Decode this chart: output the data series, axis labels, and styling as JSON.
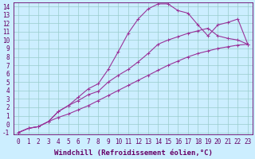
{
  "xlabel": "Windchill (Refroidissement éolien,°C)",
  "bg_color": "#cceeff",
  "line_color": "#993399",
  "xlim": [
    -0.5,
    23.5
  ],
  "ylim": [
    -1.2,
    14.5
  ],
  "xticks": [
    0,
    1,
    2,
    3,
    4,
    5,
    6,
    7,
    8,
    9,
    10,
    11,
    12,
    13,
    14,
    15,
    16,
    17,
    18,
    19,
    20,
    21,
    22,
    23
  ],
  "yticks": [
    -1,
    0,
    1,
    2,
    3,
    4,
    5,
    6,
    7,
    8,
    9,
    10,
    11,
    12,
    13,
    14
  ],
  "line1_x": [
    0,
    1,
    2,
    3,
    4,
    5,
    6,
    7,
    8,
    9,
    10,
    11,
    12,
    13,
    14,
    15,
    16,
    17,
    18,
    19,
    20,
    21,
    22,
    23
  ],
  "line1_y": [
    -1,
    -0.5,
    -0.3,
    0.3,
    0.8,
    1.2,
    1.7,
    2.2,
    2.8,
    3.4,
    4.0,
    4.6,
    5.2,
    5.8,
    6.4,
    7.0,
    7.5,
    8.0,
    8.4,
    8.7,
    9.0,
    9.2,
    9.4,
    9.5
  ],
  "line2_x": [
    0,
    1,
    2,
    3,
    4,
    5,
    6,
    7,
    8,
    9,
    10,
    11,
    12,
    13,
    14,
    15,
    16,
    17,
    18,
    19,
    20,
    21,
    22,
    23
  ],
  "line2_y": [
    -1,
    -0.5,
    -0.3,
    0.3,
    1.5,
    2.2,
    2.8,
    3.5,
    3.9,
    5.0,
    5.8,
    6.5,
    7.4,
    8.4,
    9.5,
    10.0,
    10.4,
    10.8,
    11.1,
    11.4,
    10.5,
    10.2,
    10.0,
    9.5
  ],
  "line3_x": [
    0,
    1,
    2,
    3,
    4,
    5,
    6,
    7,
    8,
    9,
    10,
    11,
    12,
    13,
    14,
    15,
    16,
    17,
    18,
    19,
    20,
    21,
    22,
    23
  ],
  "line3_y": [
    -1,
    -0.5,
    -0.3,
    0.3,
    1.5,
    2.2,
    3.2,
    4.2,
    4.8,
    6.5,
    8.6,
    10.8,
    12.5,
    13.7,
    14.3,
    14.3,
    13.5,
    13.2,
    11.8,
    10.5,
    11.8,
    12.1,
    12.5,
    9.5
  ],
  "grid_color": "#99cccc",
  "font_color": "#660066",
  "xlabel_fontsize": 6.5,
  "tick_fontsize": 5.5
}
